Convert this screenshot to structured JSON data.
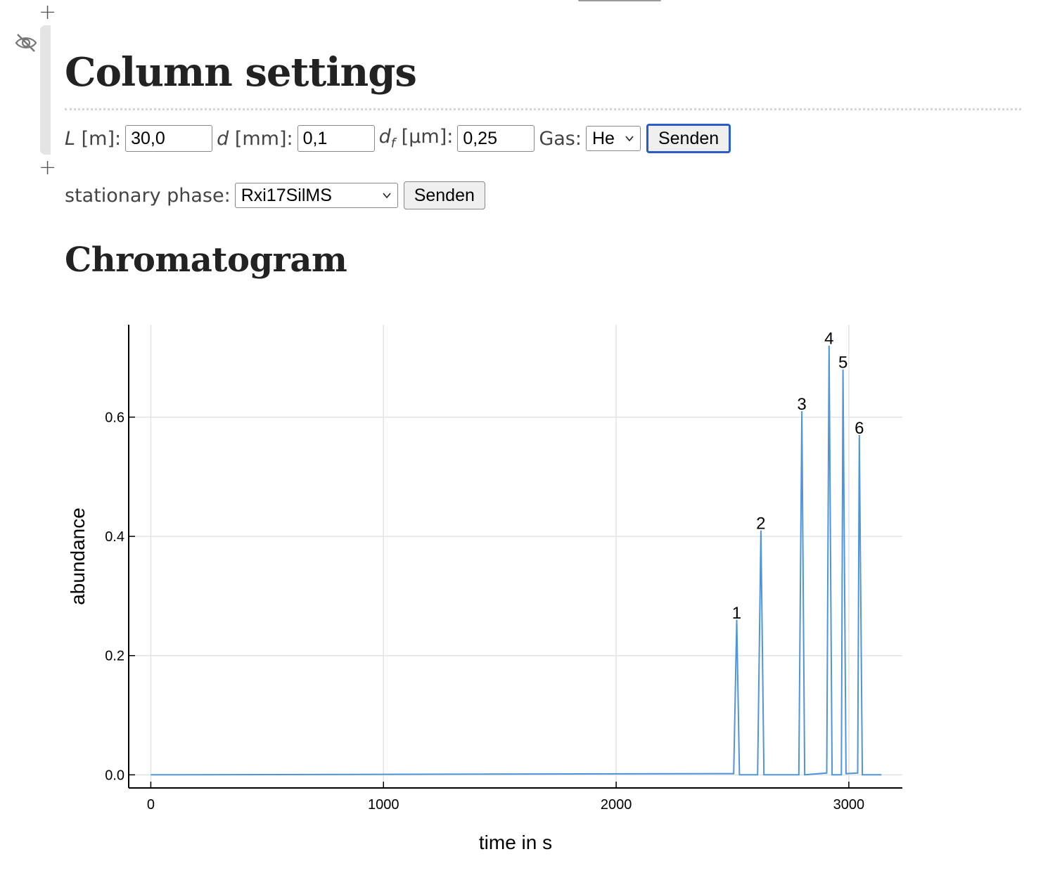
{
  "column_settings": {
    "title": "Column settings",
    "length": {
      "symbol": "L",
      "unit": " [m]:",
      "value": "30,0"
    },
    "diameter": {
      "symbol": "d",
      "unit": " [mm]:",
      "value": "0,1"
    },
    "film": {
      "symbol": "d",
      "subscript": "f",
      "unit": " [µm]:",
      "value": "0,25"
    },
    "gas": {
      "label": "Gas:",
      "value": "He"
    },
    "submit_label": "Senden"
  },
  "stationary_phase": {
    "label": "stationary phase:",
    "value": "Rxi17SilMS",
    "submit_label": "Senden"
  },
  "chromatogram": {
    "title": "Chromatogram"
  },
  "icons": {
    "hide": "eye-off-icon",
    "add": "plus-icon",
    "dropdown": "chevron-down-icon"
  },
  "colors": {
    "line": "#4f95dc",
    "button_focus": "#2a5dc7"
  },
  "chart_data": {
    "type": "line",
    "xlabel": "time in s",
    "ylabel": "abundance",
    "xlim": [
      -95,
      3230
    ],
    "ylim": [
      -0.022,
      0.755
    ],
    "xticks": [
      0,
      1000,
      2000,
      3000
    ],
    "xtick_labels": [
      "0",
      "1000",
      "2000",
      "3000"
    ],
    "yticks": [
      0.0,
      0.2,
      0.4,
      0.6
    ],
    "ytick_labels": [
      "0.0",
      "0.2",
      "0.4",
      "0.6"
    ],
    "grid": true,
    "series": [
      {
        "x": [
          0,
          2505,
          2518,
          2530,
          2608,
          2622,
          2635,
          2785,
          2798,
          2810,
          2905,
          2915,
          2928,
          2968,
          2975,
          2988,
          3038,
          3045,
          3058,
          3140
        ],
        "y": [
          0,
          0.002,
          0.26,
          0,
          0,
          0.41,
          0,
          0,
          0.61,
          0,
          0.003,
          0.72,
          0,
          0,
          0.68,
          0.002,
          0.003,
          0.57,
          0,
          0
        ]
      }
    ],
    "peaks": [
      {
        "label": "1",
        "x": 2518,
        "y": 0.26
      },
      {
        "label": "2",
        "x": 2622,
        "y": 0.41
      },
      {
        "label": "3",
        "x": 2798,
        "y": 0.61
      },
      {
        "label": "4",
        "x": 2915,
        "y": 0.72
      },
      {
        "label": "5",
        "x": 2975,
        "y": 0.68
      },
      {
        "label": "6",
        "x": 3045,
        "y": 0.57
      }
    ]
  }
}
